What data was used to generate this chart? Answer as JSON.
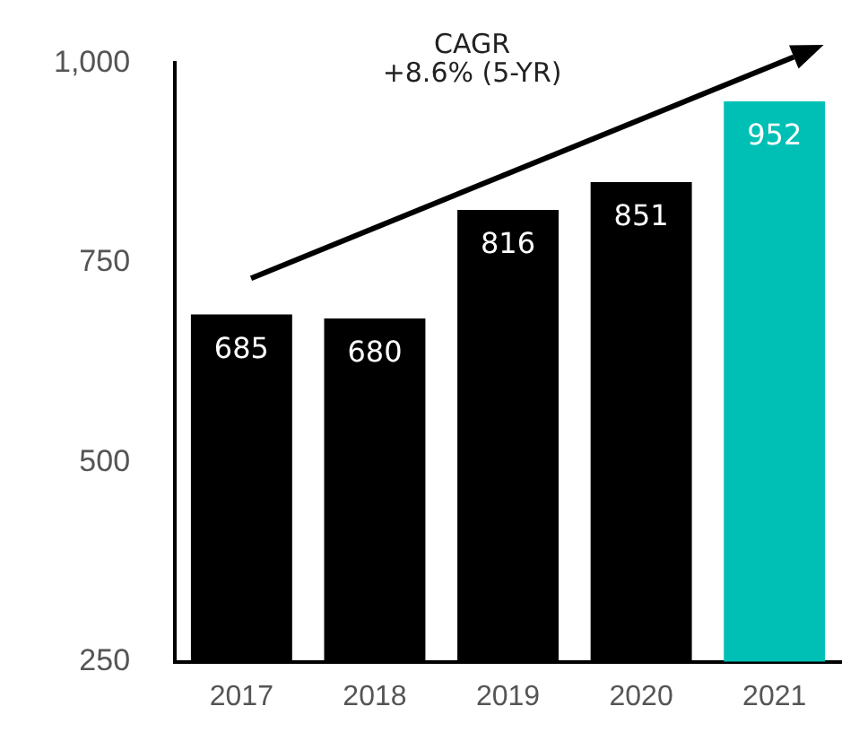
{
  "chart_data": {
    "type": "bar",
    "categories": [
      "2017",
      "2018",
      "2019",
      "2020",
      "2021"
    ],
    "values": [
      685,
      680,
      816,
      851,
      952
    ],
    "colors": [
      "#000000",
      "#000000",
      "#000000",
      "#000000",
      "#00c0b5"
    ],
    "ylim": [
      250,
      1000
    ],
    "yticks": [
      250,
      500,
      750,
      {
        "value": 1000,
        "label": "1,000"
      }
    ],
    "grid": false,
    "legend": false,
    "data_labels": true,
    "annotations": [
      "CAGR",
      "+8.6% (5-YR)"
    ]
  }
}
